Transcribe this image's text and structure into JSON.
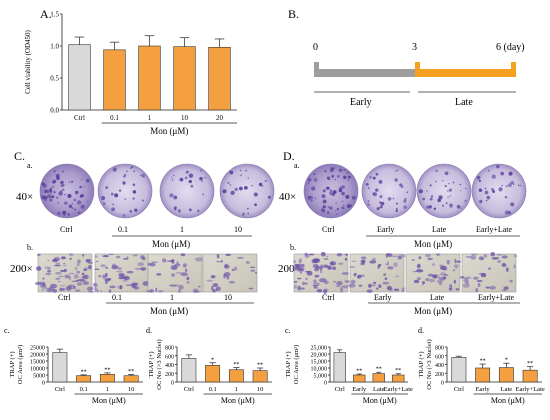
{
  "panelA": {
    "letter": "A.",
    "ylabel": "Cell viability (OD450)",
    "yticks": [
      "0.0",
      "0.5",
      "1.0",
      "1.5"
    ],
    "xgroup_label": "Mon (μM)",
    "colors": {
      "ctrl": "#d9d9d9",
      "treated": "#f5a040",
      "edge": "#333333"
    }
  },
  "panelB": {
    "letter": "B.",
    "ticks": [
      "0",
      "3",
      "6 (day)"
    ],
    "early_label": "Early",
    "late_label": "Late",
    "colors": {
      "early": "#9e9e9e",
      "late": "#f5a020"
    }
  },
  "panelC": {
    "letter": "C.",
    "sub_a": "a.",
    "sub_b": "b.",
    "sub_c": "c.",
    "sub_d": "d.",
    "mag_a": "40×",
    "mag_b": "200×",
    "labels": [
      "Ctrl",
      "0.1",
      "1",
      "10"
    ],
    "group_label": "Mon (μM)"
  },
  "panelD": {
    "letter": "D.",
    "sub_a": "a.",
    "sub_b": "b.",
    "sub_c": "c.",
    "sub_d": "d.",
    "mag_a": "40×",
    "mag_b": "200×",
    "labels": [
      "Ctrl",
      "Early",
      "Late",
      "Early+Late"
    ],
    "group_label": "Mon (μM)"
  },
  "chart_data": [
    {
      "type": "bar",
      "panel": "A",
      "categories": [
        "Ctrl",
        "0.1",
        "1",
        "10",
        "20"
      ],
      "values": [
        1.02,
        0.94,
        1.0,
        0.99,
        0.98
      ],
      "errors": [
        0.12,
        0.12,
        0.16,
        0.14,
        0.13
      ],
      "xlabel": "Mon (μM)",
      "ylabel": "Cell viability (OD450)",
      "ylim": [
        0,
        1.5
      ],
      "yticks": [
        "0.0",
        "0.5",
        "1.0",
        "1.5"
      ],
      "colors": [
        "#d9d9d9",
        "#f5a040",
        "#f5a040",
        "#f5a040",
        "#f5a040"
      ]
    },
    {
      "type": "bar",
      "panel": "C.c",
      "categories": [
        "Ctrl",
        "0.1",
        "1",
        "10"
      ],
      "values": [
        21000,
        4500,
        5500,
        4500
      ],
      "errors": [
        2500,
        600,
        1000,
        800
      ],
      "significance": [
        "",
        "**",
        "**",
        "**"
      ],
      "xlabel": "Mon (μM)",
      "ylabel": "TRAP (+) OC Area (μm²)",
      "ylim": [
        0,
        25000
      ],
      "yticks": [
        "0",
        "5000",
        "10000",
        "15000",
        "20000",
        "25000"
      ],
      "colors": [
        "#d9d9d9",
        "#f5a040",
        "#f5a040",
        "#f5a040"
      ]
    },
    {
      "type": "bar",
      "panel": "C.d",
      "categories": [
        "Ctrl",
        "0.1",
        "1",
        "10"
      ],
      "values": [
        540,
        380,
        280,
        260
      ],
      "errors": [
        80,
        60,
        50,
        60
      ],
      "significance": [
        "",
        "*",
        "**",
        "**"
      ],
      "xlabel": "Mon (μM)",
      "ylabel": "TRAP (+) OC No (>3 Nuclei)",
      "ylim": [
        0,
        800
      ],
      "yticks": [
        "0",
        "200",
        "400",
        "600",
        "800"
      ],
      "colors": [
        "#d9d9d9",
        "#f5a040",
        "#f5a040",
        "#f5a040"
      ]
    },
    {
      "type": "bar",
      "panel": "D.c",
      "categories": [
        "Ctrl",
        "Early",
        "Late",
        "Early+Late"
      ],
      "values": [
        21000,
        5000,
        6000,
        5000
      ],
      "errors": [
        2000,
        700,
        1000,
        900
      ],
      "significance": [
        "",
        "**",
        "**",
        "**"
      ],
      "xlabel": "Mon (μM)",
      "ylabel": "TRAP (+) OC Area (μm²)",
      "ylim": [
        0,
        25000
      ],
      "yticks": [
        "0",
        "5,000",
        "10,000",
        "15,000",
        "20,000",
        "25,000"
      ],
      "colors": [
        "#d9d9d9",
        "#f5a040",
        "#f5a040",
        "#f5a040"
      ]
    },
    {
      "type": "bar",
      "panel": "D.d",
      "categories": [
        "Ctrl",
        "Early",
        "Late",
        "Early+Late"
      ],
      "values": [
        560,
        320,
        330,
        270
      ],
      "errors": [
        30,
        90,
        100,
        80
      ],
      "significance": [
        "",
        "**",
        "*",
        "**"
      ],
      "xlabel": "Mon (μM)",
      "ylabel": "TRAP (+) OC No (>3 Nuclei)",
      "ylim": [
        0,
        800
      ],
      "yticks": [
        "0",
        "200",
        "400",
        "600",
        "800"
      ],
      "colors": [
        "#d9d9d9",
        "#f5a040",
        "#f5a040",
        "#f5a040"
      ]
    }
  ]
}
